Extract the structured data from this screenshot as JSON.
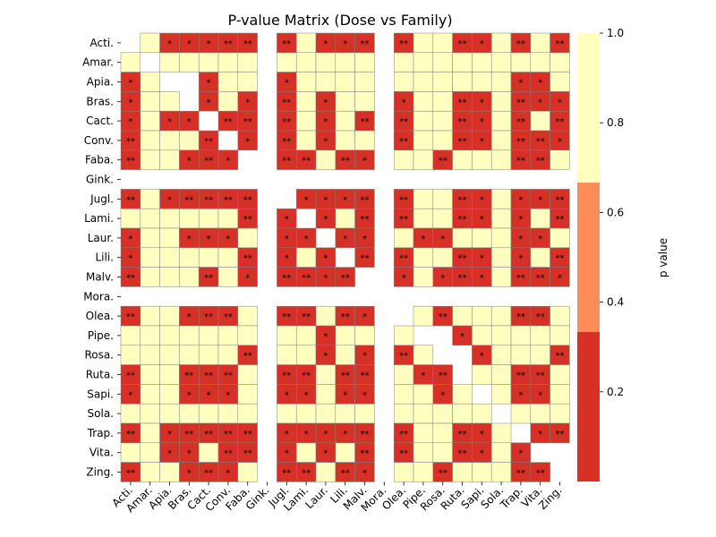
{
  "chart_data": {
    "type": "heatmap",
    "title": "P-value Matrix (Dose vs Family)",
    "xlabel": "",
    "ylabel": "",
    "categories": [
      "Acti.",
      "Amar.",
      "Apia.",
      "Bras.",
      "Cact.",
      "Conv.",
      "Faba.",
      "Gink.",
      "Jugl.",
      "Lami.",
      "Laur.",
      "Lili.",
      "Malv.",
      "Mora.",
      "Olea.",
      "Pipe.",
      "Rosa.",
      "Ruta.",
      "Sapi.",
      "Sola.",
      "Trap.",
      "Vita.",
      "Zing."
    ],
    "colorbar": {
      "label": "p value",
      "range": [
        0,
        1
      ],
      "ticks": [
        0.2,
        0.4,
        0.6,
        0.8,
        1.0
      ],
      "bands": [
        {
          "from": 0.0,
          "to": 0.3333,
          "color": "#d73027"
        },
        {
          "from": 0.3333,
          "to": 0.6667,
          "color": "#fc8d59"
        },
        {
          "from": 0.6667,
          "to": 1.0,
          "color": "#ffffbf"
        }
      ]
    },
    "cells": [
      [
        "",
        "",
        "*",
        "*",
        "*",
        "**",
        "**",
        "",
        "**",
        "",
        "*",
        "*",
        "**",
        "",
        "**",
        "",
        "",
        "**",
        "*",
        "",
        "**",
        "",
        "**"
      ],
      [
        "",
        "",
        "",
        "",
        "",
        "",
        "",
        "",
        "",
        "",
        "",
        "",
        "",
        "",
        "",
        "",
        "",
        "",
        "",
        "",
        "",
        "",
        ""
      ],
      [
        "*",
        "",
        "",
        "",
        "*",
        "",
        "",
        "",
        "*",
        "",
        "",
        "",
        "",
        "",
        "",
        "",
        "",
        "",
        "",
        "",
        "*",
        "*",
        ""
      ],
      [
        "*",
        "",
        "",
        "",
        "*",
        "",
        "*",
        "",
        "**",
        "",
        "*",
        "",
        "",
        "",
        "*",
        "",
        "",
        "**",
        "*",
        "",
        "**",
        "*",
        "*"
      ],
      [
        "*",
        "",
        "*",
        "*",
        "",
        "**",
        "**",
        "",
        "**",
        "",
        "*",
        "",
        "**",
        "",
        "**",
        "",
        "",
        "**",
        "*",
        "",
        "**",
        "",
        "**"
      ],
      [
        "**",
        "",
        "",
        "",
        "**",
        "",
        "*",
        "",
        "**",
        "",
        "*",
        "",
        "",
        "",
        "**",
        "",
        "",
        "**",
        "*",
        "",
        "**",
        "**",
        "*"
      ],
      [
        "**",
        "",
        "",
        "*",
        "**",
        "*",
        "",
        "",
        "**",
        "**",
        "",
        "**",
        "*",
        "",
        "",
        "",
        "**",
        "",
        "",
        "",
        "**",
        "**",
        ""
      ],
      [
        "",
        "",
        "",
        "",
        "",
        "",
        "",
        "",
        "",
        "",
        "",
        "",
        "",
        "",
        "",
        "",
        "",
        "",
        "",
        "",
        "",
        "",
        ""
      ],
      [
        "**",
        "",
        "*",
        "**",
        "**",
        "**",
        "**",
        "",
        "",
        "*",
        "*",
        "*",
        "**",
        "",
        "**",
        "",
        "",
        "**",
        "*",
        "",
        "*",
        "*",
        "**"
      ],
      [
        "",
        "",
        "",
        "",
        "",
        "",
        "**",
        "",
        "*",
        "",
        "*",
        "",
        "**",
        "",
        "**",
        "",
        "",
        "**",
        "*",
        "",
        "*",
        "",
        "**"
      ],
      [
        "*",
        "",
        "",
        "*",
        "*",
        "*",
        "",
        "",
        "*",
        "*",
        "",
        "*",
        "*",
        "",
        "",
        "*",
        "*",
        "",
        "",
        "",
        "*",
        "*",
        ""
      ],
      [
        "*",
        "",
        "",
        "",
        "",
        "",
        "**",
        "",
        "*",
        "",
        "*",
        "",
        "**",
        "",
        "**",
        "",
        "",
        "**",
        "*",
        "",
        "*",
        "",
        "**"
      ],
      [
        "**",
        "",
        "",
        "",
        "**",
        "",
        "*",
        "",
        "**",
        "**",
        "*",
        "**",
        "",
        "",
        "*",
        "",
        "*",
        "**",
        "*",
        "",
        "**",
        "**",
        "*"
      ],
      [
        "",
        "",
        "",
        "",
        "",
        "",
        "",
        "",
        "",
        "",
        "",
        "",
        "",
        "",
        "",
        "",
        "",
        "",
        "",
        "",
        "",
        "",
        ""
      ],
      [
        "**",
        "",
        "",
        "*",
        "**",
        "**",
        "",
        "",
        "**",
        "**",
        "",
        "**",
        "*",
        "",
        "",
        "",
        "**",
        "",
        "",
        "",
        "**",
        "**",
        ""
      ],
      [
        "",
        "",
        "",
        "",
        "",
        "",
        "",
        "",
        "",
        "",
        "*",
        "",
        "",
        "",
        "",
        "",
        "",
        "*",
        "",
        "",
        "",
        "",
        ""
      ],
      [
        "",
        "",
        "",
        "",
        "",
        "",
        "**",
        "",
        "",
        "",
        "*",
        "",
        "*",
        "",
        "**",
        "",
        "",
        "**",
        "*",
        "",
        "",
        "",
        "**"
      ],
      [
        "**",
        "",
        "",
        "**",
        "**",
        "**",
        "",
        "",
        "**",
        "**",
        "",
        "**",
        "**",
        "",
        "",
        "*",
        "**",
        "",
        "",
        "",
        "**",
        "**",
        ""
      ],
      [
        "*",
        "",
        "",
        "*",
        "*",
        "*",
        "",
        "",
        "*",
        "*",
        "",
        "*",
        "*",
        "",
        "",
        "",
        "*",
        "",
        "",
        "",
        "*",
        "*",
        ""
      ],
      [
        "",
        "",
        "",
        "",
        "",
        "",
        "",
        "",
        "",
        "",
        "",
        "",
        "",
        "",
        "",
        "",
        "",
        "",
        "",
        "",
        "",
        "",
        ""
      ],
      [
        "**",
        "",
        "*",
        "**",
        "**",
        "**",
        "**",
        "",
        "*",
        "*",
        "*",
        "*",
        "**",
        "",
        "**",
        "",
        "",
        "**",
        "*",
        "",
        "",
        "*",
        "**"
      ],
      [
        "",
        "",
        "*",
        "*",
        "",
        "**",
        "**",
        "",
        "*",
        "",
        "*",
        "",
        "**",
        "",
        "**",
        "",
        "",
        "**",
        "*",
        "",
        "*",
        "",
        "**"
      ],
      [
        "**",
        "",
        "",
        "*",
        "**",
        "*",
        "",
        "",
        "**",
        "**",
        "",
        "**",
        "*",
        "",
        "",
        "",
        "**",
        "",
        "",
        "",
        "**",
        "**",
        ""
      ]
    ],
    "missing": [
      [
        0,
        0
      ],
      [
        1,
        1
      ],
      [
        2,
        2
      ],
      [
        2,
        3
      ],
      [
        3,
        3
      ],
      [
        4,
        4
      ],
      [
        5,
        5
      ],
      [
        6,
        6
      ],
      [
        6,
        7
      ],
      [
        7,
        7
      ],
      [
        8,
        8
      ],
      [
        9,
        9
      ],
      [
        10,
        10
      ],
      [
        11,
        11
      ],
      [
        12,
        12
      ],
      [
        13,
        13
      ],
      [
        14,
        14
      ],
      [
        15,
        15
      ],
      [
        15,
        16
      ],
      [
        16,
        16
      ],
      [
        16,
        17
      ],
      [
        17,
        17
      ],
      [
        18,
        18
      ],
      [
        19,
        19
      ],
      [
        20,
        20
      ],
      [
        21,
        21
      ],
      [
        21,
        22
      ],
      [
        22,
        22
      ]
    ],
    "missing_rows": [
      7,
      13
    ],
    "missing_cols": [
      7,
      13
    ]
  }
}
